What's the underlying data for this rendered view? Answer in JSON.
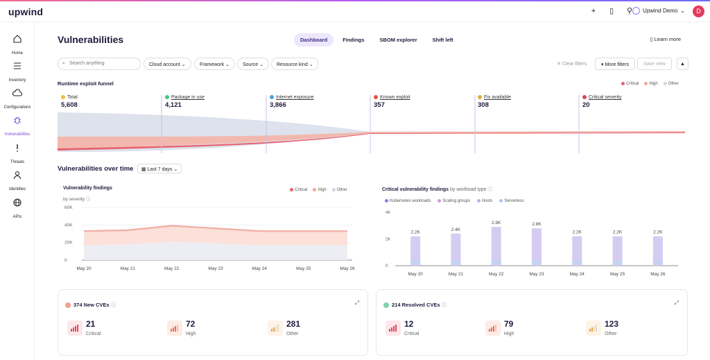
{
  "brand": "upwind",
  "header": {
    "account_name": "Upwind Demo",
    "avatar_letter": "D",
    "icons": [
      "plus-icon",
      "book-icon",
      "pin-icon"
    ]
  },
  "sidebar": {
    "items": [
      {
        "label": "Home",
        "icon": "home-icon"
      },
      {
        "label": "Inventory",
        "icon": "list-icon"
      },
      {
        "label": "Configurations",
        "icon": "cloud-icon"
      },
      {
        "label": "Vulnerabilities",
        "icon": "bug-icon"
      },
      {
        "label": "Threats",
        "icon": "alert-icon"
      },
      {
        "label": "Identities",
        "icon": "user-icon"
      },
      {
        "label": "APIs",
        "icon": "globe-icon"
      }
    ]
  },
  "page": {
    "title": "Vulnerabilities",
    "learn_more": "Learn more"
  },
  "tabs": [
    "Dashboard",
    "Findings",
    "SBOM explorer",
    "Shift left"
  ],
  "filters": {
    "search_placeholder": "Search anything",
    "chips": [
      "Cloud account",
      "Framework",
      "Source",
      "Resource kind"
    ],
    "clear": "Clear filters",
    "more": "More filters",
    "save": "Save view"
  },
  "funnel": {
    "title": "Runtime exploit funnel",
    "legend": [
      "Critical",
      "High",
      "Other"
    ],
    "stages": [
      {
        "name": "Total",
        "value": "5,608"
      },
      {
        "name": "Package in use",
        "value": "4,121"
      },
      {
        "name": "Internet exposure",
        "value": "3,866"
      },
      {
        "name": "Known exploit",
        "value": "357"
      },
      {
        "name": "Fix available",
        "value": "308"
      },
      {
        "name": "Critical severity",
        "value": "20"
      }
    ]
  },
  "over_time": {
    "title": "Vulnerabilities over time",
    "range": "Last 7 days"
  },
  "findings_chart": {
    "title": "Vulnerability findings",
    "subtitle": "by severity",
    "legend": [
      "Critical",
      "High",
      "Other"
    ],
    "y_ticks": [
      "60K",
      "40K",
      "20K",
      "0"
    ],
    "x_labels": [
      "May 20",
      "May 21",
      "May 22",
      "May 23",
      "May 24",
      "May 25",
      "May 26"
    ]
  },
  "critical_chart": {
    "title": "Critical vulnerability findings",
    "title_suffix": "by workload type",
    "legend": [
      "Kubernetes workloads",
      "Scaling groups",
      "Hosts",
      "Serverless"
    ],
    "y_ticks": [
      "4k",
      "2k",
      "0"
    ],
    "x_labels": [
      "May 20",
      "May 21",
      "May 22",
      "May 23",
      "May 24",
      "May 25",
      "May 26"
    ],
    "bar_labels": [
      "2.2K",
      "2.4K",
      "2.9K",
      "2.8K",
      "2.2K",
      "2.2K",
      "2.2K"
    ]
  },
  "chart_data": [
    {
      "type": "area",
      "title": "Vulnerability findings",
      "x": [
        "May 20",
        "May 21",
        "May 22",
        "May 23",
        "May 24",
        "May 25",
        "May 26"
      ],
      "series": [
        {
          "name": "Other",
          "values": [
            17000,
            18000,
            21000,
            19000,
            17000,
            17000,
            17000
          ]
        },
        {
          "name": "High",
          "values": [
            15000,
            15000,
            17000,
            16000,
            15000,
            15000,
            15000
          ]
        },
        {
          "name": "Critical",
          "values": [
            1500,
            1500,
            1600,
            1600,
            1500,
            1500,
            1500
          ]
        }
      ],
      "ylim": [
        0,
        60000
      ]
    },
    {
      "type": "bar",
      "title": "Critical vulnerability findings by workload type",
      "categories": [
        "May 20",
        "May 21",
        "May 22",
        "May 23",
        "May 24",
        "May 25",
        "May 26"
      ],
      "values": [
        2200,
        2400,
        2900,
        2800,
        2200,
        2200,
        2200
      ],
      "ylim": [
        0,
        4000
      ]
    }
  ],
  "new_cves": {
    "title": "374 New CVEs",
    "items": [
      {
        "value": "21",
        "label": "Critical"
      },
      {
        "value": "72",
        "label": "High"
      },
      {
        "value": "281",
        "label": "Other"
      }
    ]
  },
  "resolved_cves": {
    "title": "214 Resolved CVEs",
    "items": [
      {
        "value": "12",
        "label": "Critical"
      },
      {
        "value": "79",
        "label": "High"
      },
      {
        "value": "123",
        "label": "Other"
      }
    ]
  },
  "colors": {
    "accent": "#7b4fd6",
    "critical": "#e8606f",
    "high": "#f3a58e",
    "other": "#cfd6e3"
  }
}
